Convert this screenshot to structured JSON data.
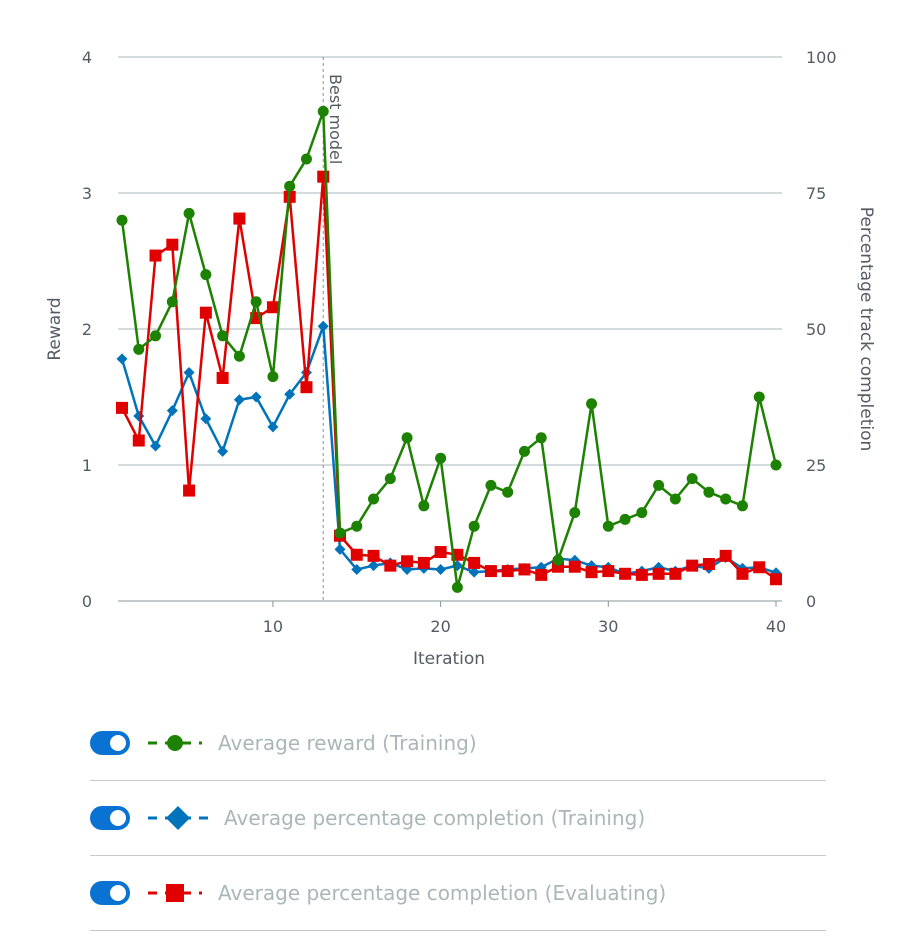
{
  "chart_data": {
    "type": "line",
    "xlabel": "Iteration",
    "ylabel": "Reward",
    "y2label": "Percentage track completion",
    "xlim": [
      1,
      40
    ],
    "xticks": [
      10,
      20,
      30,
      40
    ],
    "ylim": [
      0,
      4
    ],
    "yticks": [
      0,
      1,
      2,
      3,
      4
    ],
    "y2lim": [
      0,
      100
    ],
    "y2ticks": [
      0,
      25,
      50,
      75,
      100
    ],
    "grid": true,
    "annotation": {
      "label": "Best model",
      "x": 13
    },
    "x": [
      1,
      2,
      3,
      4,
      5,
      6,
      7,
      8,
      9,
      10,
      11,
      12,
      13,
      14,
      15,
      16,
      17,
      18,
      19,
      20,
      21,
      22,
      23,
      24,
      25,
      26,
      27,
      28,
      29,
      30,
      31,
      32,
      33,
      34,
      35,
      36,
      37,
      38,
      39,
      40
    ],
    "series": [
      {
        "name": "Average reward (Training)",
        "axis": "left",
        "color": "#1d8102",
        "marker": "circle",
        "values": [
          2.8,
          1.85,
          1.95,
          2.2,
          2.85,
          2.4,
          1.95,
          1.8,
          2.2,
          1.65,
          3.05,
          3.25,
          3.6,
          0.5,
          0.55,
          0.75,
          0.9,
          1.2,
          0.7,
          1.05,
          0.1,
          0.55,
          0.85,
          0.8,
          1.1,
          1.2,
          0.3,
          0.65,
          1.45,
          0.55,
          0.6,
          0.65,
          0.85,
          0.75,
          0.9,
          0.8,
          0.75,
          0.7,
          1.5,
          1.0
        ]
      },
      {
        "name": "Average percentage completion (Training)",
        "axis": "right",
        "color": "#0073bb",
        "marker": "diamond",
        "values": [
          44.5,
          34,
          28.5,
          35,
          42,
          33.5,
          27.5,
          37,
          37.5,
          32,
          38,
          42,
          50.5,
          9.5,
          5.8,
          6.5,
          7,
          5.8,
          6,
          5.8,
          6.5,
          5.3,
          5.5,
          5.8,
          6,
          6.2,
          7.8,
          7.5,
          6.5,
          6.2,
          5,
          5.5,
          6.2,
          5.5,
          6.5,
          6,
          8,
          6,
          6.2,
          5.2
        ]
      },
      {
        "name": "Average percentage completion (Evaluating)",
        "axis": "right",
        "color": "#e00000",
        "marker": "square",
        "values": [
          35.5,
          29.5,
          63.5,
          65.5,
          20.3,
          53,
          41,
          70.3,
          52,
          54,
          74.3,
          39.3,
          78,
          12,
          8.5,
          8.3,
          6.5,
          7.3,
          7,
          9,
          8.5,
          7,
          5.5,
          5.5,
          5.8,
          4.8,
          6.3,
          6.3,
          5.3,
          5.5,
          5,
          4.8,
          5,
          5,
          6.5,
          6.8,
          8.3,
          5,
          6.2,
          4
        ]
      }
    ]
  },
  "legend": {
    "items": [
      {
        "label": "Average reward (Training)",
        "color": "#1d8102",
        "marker": "circle"
      },
      {
        "label": "Average percentage completion (Training)",
        "color": "#0073bb",
        "marker": "diamond"
      },
      {
        "label": "Average percentage completion (Evaluating)",
        "color": "#e00000",
        "marker": "square"
      }
    ],
    "toggle_color": "#0972d3"
  }
}
